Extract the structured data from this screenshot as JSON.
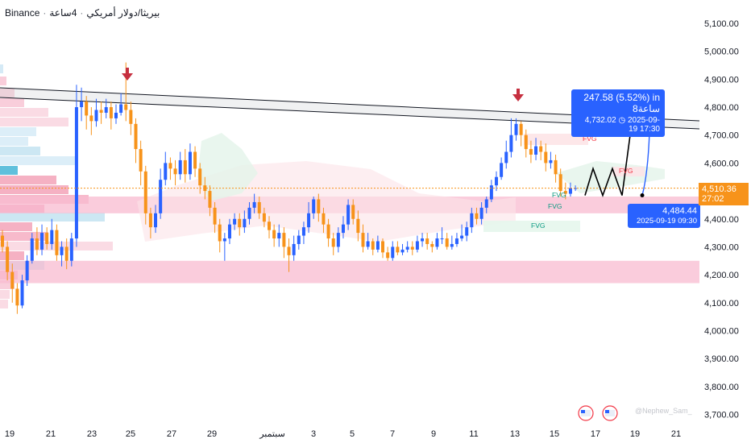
{
  "header": {
    "exchange": "Binance",
    "symbol": "بيريثا/دولار أمريكي",
    "timeframe": "4ساعة"
  },
  "price_axis": {
    "labels": [
      "5,100.00",
      "5,000.00",
      "4,900.00",
      "4,800.00",
      "4,700.00",
      "4,600.00",
      "4,500.00",
      "4,400.00",
      "4,300.00",
      "4,200.00",
      "4,100.00",
      "4,000.00",
      "3,900.00",
      "3,800.00",
      "3,700.00"
    ],
    "current_price": "4,510.36",
    "countdown": "27:02"
  },
  "time_axis": {
    "labels": [
      "19",
      "21",
      "23",
      "25",
      "27",
      "29",
      "سبتمبر",
      "3",
      "5",
      "7",
      "9",
      "11",
      "13",
      "15",
      "17",
      "19",
      "21"
    ]
  },
  "annotations": {
    "target": {
      "line1": "247.58 (5.52%) in 8ساعة",
      "line2": "2025-09-19  17:30",
      "price": "4,732.02"
    },
    "entry": {
      "price": "4,484.44",
      "time": "2025-09-19 09:30"
    },
    "fvg_label": "FVG",
    "watermark": "@Nephew_Sam_"
  },
  "colors": {
    "bull": "#2962ff",
    "bear": "#f7931a",
    "zone": "#f8bbd0",
    "arrow": "#c62f3f",
    "fvg_red": "#f23645",
    "fvg_green": "#089981"
  },
  "chart_data": {
    "type": "candlestick",
    "interval": "4h",
    "ylim": [
      3650,
      5150
    ],
    "x_ticks": [
      "19",
      "21",
      "23",
      "25",
      "27",
      "29",
      "سبتمبر",
      "3",
      "5",
      "7",
      "9",
      "11",
      "13",
      "15",
      "17",
      "19",
      "21"
    ],
    "trendline": {
      "start": [
        "19",
        4880
      ],
      "end": [
        "21",
        4725
      ]
    },
    "support_zone_upper": [
      4420,
      4480
    ],
    "support_zone_lower": [
      4170,
      4250
    ],
    "projection_path": [
      4484,
      4580,
      4484,
      4580,
      4484,
      4700
    ],
    "projection_target": 4732.02,
    "projection_entry": 4484.44,
    "candles": [
      [
        4340,
        4300,
        4360,
        4280
      ],
      [
        4300,
        4210,
        4320,
        4180
      ],
      [
        4210,
        4150,
        4240,
        4100
      ],
      [
        4150,
        4090,
        4170,
        4060
      ],
      [
        4090,
        4180,
        4200,
        4080
      ],
      [
        4180,
        4250,
        4270,
        4160
      ],
      [
        4250,
        4330,
        4350,
        4240
      ],
      [
        4330,
        4290,
        4370,
        4270
      ],
      [
        4290,
        4350,
        4380,
        4270
      ],
      [
        4350,
        4310,
        4370,
        4290
      ],
      [
        4310,
        4360,
        4400,
        4290
      ],
      [
        4360,
        4270,
        4380,
        4250
      ],
      [
        4270,
        4300,
        4320,
        4230
      ],
      [
        4300,
        4250,
        4330,
        4220
      ],
      [
        4250,
        4330,
        4350,
        4230
      ],
      [
        4330,
        4800,
        4880,
        4300
      ],
      [
        4800,
        4820,
        4870,
        4750
      ],
      [
        4820,
        4770,
        4840,
        4720
      ],
      [
        4770,
        4750,
        4800,
        4700
      ],
      [
        4750,
        4790,
        4830,
        4730
      ],
      [
        4790,
        4780,
        4820,
        4740
      ],
      [
        4780,
        4800,
        4830,
        4760
      ],
      [
        4800,
        4760,
        4820,
        4720
      ],
      [
        4760,
        4780,
        4810,
        4740
      ],
      [
        4780,
        4810,
        4850,
        4770
      ],
      [
        4810,
        4790,
        4960,
        4750
      ],
      [
        4790,
        4740,
        4820,
        4700
      ],
      [
        4740,
        4650,
        4760,
        4600
      ],
      [
        4650,
        4570,
        4680,
        4520
      ],
      [
        4570,
        4420,
        4590,
        4380
      ],
      [
        4420,
        4370,
        4440,
        4330
      ],
      [
        4370,
        4420,
        4450,
        4350
      ],
      [
        4420,
        4540,
        4580,
        4400
      ],
      [
        4540,
        4600,
        4640,
        4520
      ],
      [
        4600,
        4580,
        4620,
        4540
      ],
      [
        4580,
        4560,
        4610,
        4520
      ],
      [
        4560,
        4610,
        4640,
        4540
      ],
      [
        4610,
        4560,
        4650,
        4530
      ],
      [
        4560,
        4640,
        4670,
        4540
      ],
      [
        4640,
        4580,
        4660,
        4550
      ],
      [
        4580,
        4520,
        4600,
        4490
      ],
      [
        4520,
        4500,
        4550,
        4470
      ],
      [
        4500,
        4440,
        4520,
        4410
      ],
      [
        4440,
        4380,
        4460,
        4350
      ],
      [
        4380,
        4320,
        4400,
        4280
      ],
      [
        4320,
        4330,
        4350,
        4250
      ],
      [
        4330,
        4380,
        4400,
        4310
      ],
      [
        4380,
        4400,
        4420,
        4360
      ],
      [
        4400,
        4370,
        4420,
        4340
      ],
      [
        4370,
        4400,
        4430,
        4350
      ],
      [
        4400,
        4440,
        4460,
        4380
      ],
      [
        4440,
        4460,
        4490,
        4420
      ],
      [
        4460,
        4420,
        4480,
        4400
      ],
      [
        4420,
        4390,
        4440,
        4370
      ],
      [
        4390,
        4360,
        4410,
        4330
      ],
      [
        4360,
        4330,
        4380,
        4300
      ],
      [
        4330,
        4350,
        4380,
        4300
      ],
      [
        4350,
        4300,
        4370,
        4260
      ],
      [
        4300,
        4270,
        4330,
        4210
      ],
      [
        4270,
        4310,
        4340,
        4250
      ],
      [
        4310,
        4340,
        4360,
        4290
      ],
      [
        4340,
        4370,
        4390,
        4310
      ],
      [
        4370,
        4420,
        4460,
        4350
      ],
      [
        4420,
        4470,
        4480,
        4400
      ],
      [
        4470,
        4420,
        4490,
        4390
      ],
      [
        4420,
        4380,
        4440,
        4350
      ],
      [
        4380,
        4330,
        4400,
        4300
      ],
      [
        4330,
        4300,
        4350,
        4270
      ],
      [
        4300,
        4350,
        4370,
        4280
      ],
      [
        4350,
        4380,
        4410,
        4330
      ],
      [
        4380,
        4450,
        4470,
        4360
      ],
      [
        4450,
        4400,
        4470,
        4380
      ],
      [
        4400,
        4350,
        4430,
        4320
      ],
      [
        4350,
        4300,
        4380,
        4280
      ],
      [
        4300,
        4320,
        4350,
        4290
      ],
      [
        4320,
        4290,
        4330,
        4270
      ],
      [
        4290,
        4320,
        4340,
        4280
      ],
      [
        4320,
        4280,
        4330,
        4260
      ],
      [
        4280,
        4260,
        4300,
        4250
      ],
      [
        4260,
        4300,
        4320,
        4250
      ],
      [
        4300,
        4280,
        4320,
        4270
      ],
      [
        4280,
        4290,
        4310,
        4270
      ],
      [
        4290,
        4300,
        4320,
        4280
      ],
      [
        4300,
        4290,
        4320,
        4270
      ],
      [
        4290,
        4320,
        4340,
        4280
      ],
      [
        4320,
        4330,
        4350,
        4300
      ],
      [
        4330,
        4310,
        4350,
        4290
      ],
      [
        4310,
        4300,
        4320,
        4280
      ],
      [
        4300,
        4330,
        4350,
        4290
      ],
      [
        4330,
        4330,
        4370,
        4310
      ],
      [
        4330,
        4300,
        4350,
        4290
      ],
      [
        4300,
        4310,
        4340,
        4290
      ],
      [
        4310,
        4330,
        4350,
        4300
      ],
      [
        4330,
        4340,
        4380,
        4320
      ],
      [
        4340,
        4370,
        4390,
        4320
      ],
      [
        4370,
        4420,
        4440,
        4350
      ],
      [
        4420,
        4400,
        4440,
        4380
      ],
      [
        4400,
        4440,
        4460,
        4380
      ],
      [
        4440,
        4470,
        4480,
        4420
      ],
      [
        4470,
        4520,
        4540,
        4460
      ],
      [
        4520,
        4550,
        4570,
        4500
      ],
      [
        4550,
        4600,
        4620,
        4540
      ],
      [
        4600,
        4640,
        4680,
        4580
      ],
      [
        4640,
        4700,
        4760,
        4620
      ],
      [
        4700,
        4740,
        4760,
        4680
      ],
      [
        4740,
        4700,
        4750,
        4660
      ],
      [
        4700,
        4650,
        4720,
        4620
      ],
      [
        4650,
        4630,
        4680,
        4600
      ],
      [
        4630,
        4660,
        4690,
        4610
      ],
      [
        4660,
        4640,
        4680,
        4610
      ],
      [
        4640,
        4600,
        4670,
        4570
      ],
      [
        4600,
        4610,
        4640,
        4580
      ],
      [
        4610,
        4560,
        4630,
        4530
      ],
      [
        4560,
        4500,
        4580,
        4480
      ],
      [
        4500,
        4490,
        4530,
        4470
      ],
      [
        4490,
        4510,
        4530,
        4480
      ],
      [
        4510,
        4510,
        4520,
        4500
      ]
    ]
  }
}
